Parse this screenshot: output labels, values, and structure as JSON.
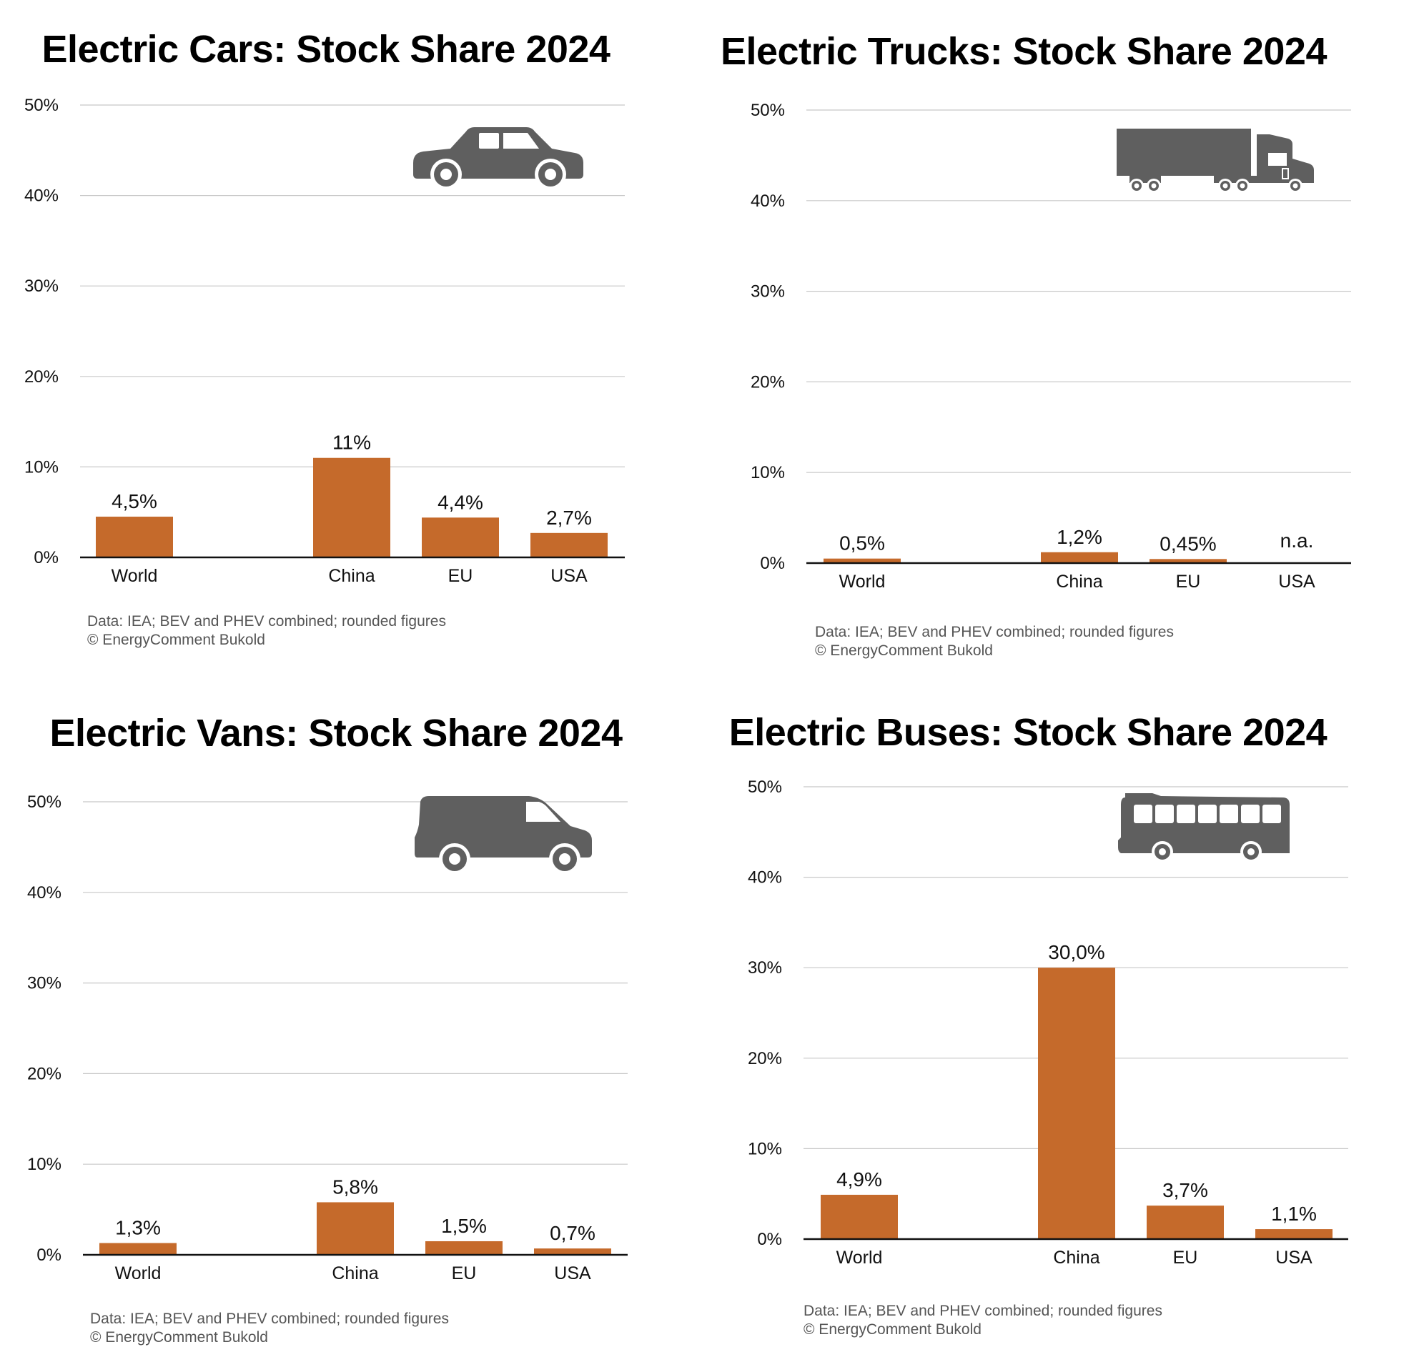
{
  "style": {
    "bar_color": "#c56a2b",
    "grid_color": "#c8c8c8",
    "axis_color": "#111111",
    "icon_color": "#5f5f5f"
  },
  "chart_data": [
    {
      "type": "bar",
      "title": "Electric Cars: Stock Share 2024",
      "icon": "car-icon",
      "categories": [
        "World",
        "China",
        "EU",
        "USA"
      ],
      "values": [
        4.5,
        11,
        4.4,
        2.7
      ],
      "data_labels": [
        "4,5%",
        "11%",
        "4,4%",
        "2,7%"
      ],
      "ylim": [
        0,
        50
      ],
      "yticks": [
        "0%",
        "10%",
        "20%",
        "30%",
        "40%",
        "50%"
      ],
      "grid": true,
      "note": "Data: IEA; BEV and PHEV combined; rounded figures",
      "credit": "© EnergyComment Bukold"
    },
    {
      "type": "bar",
      "title": "Electric Trucks: Stock Share 2024",
      "icon": "truck-icon",
      "categories": [
        "World",
        "China",
        "EU",
        "USA"
      ],
      "values": [
        0.5,
        1.2,
        0.45,
        null
      ],
      "data_labels": [
        "0,5%",
        "1,2%",
        "0,45%",
        "n.a."
      ],
      "ylim": [
        0,
        50
      ],
      "yticks": [
        "0%",
        "10%",
        "20%",
        "30%",
        "40%",
        "50%"
      ],
      "grid": true,
      "note": "Data: IEA; BEV and PHEV combined; rounded figures",
      "credit": "© EnergyComment Bukold"
    },
    {
      "type": "bar",
      "title": "Electric Vans: Stock Share 2024",
      "icon": "van-icon",
      "categories": [
        "World",
        "China",
        "EU",
        "USA"
      ],
      "values": [
        1.3,
        5.8,
        1.5,
        0.7
      ],
      "data_labels": [
        "1,3%",
        "5,8%",
        "1,5%",
        "0,7%"
      ],
      "ylim": [
        0,
        50
      ],
      "yticks": [
        "0%",
        "10%",
        "20%",
        "30%",
        "40%",
        "50%"
      ],
      "grid": true,
      "note": "Data: IEA; BEV and PHEV combined; rounded figures",
      "credit": "© EnergyComment Bukold"
    },
    {
      "type": "bar",
      "title": "Electric Buses: Stock Share 2024",
      "icon": "bus-icon",
      "categories": [
        "World",
        "China",
        "EU",
        "USA"
      ],
      "values": [
        4.9,
        30.0,
        3.7,
        1.1
      ],
      "data_labels": [
        "4,9%",
        "30,0%",
        "3,7%",
        "1,1%"
      ],
      "ylim": [
        0,
        50
      ],
      "yticks": [
        "0%",
        "10%",
        "20%",
        "30%",
        "40%",
        "50%"
      ],
      "grid": true,
      "note": "Data: IEA; BEV and PHEV combined; rounded figures",
      "credit": "© EnergyComment Bukold"
    }
  ]
}
